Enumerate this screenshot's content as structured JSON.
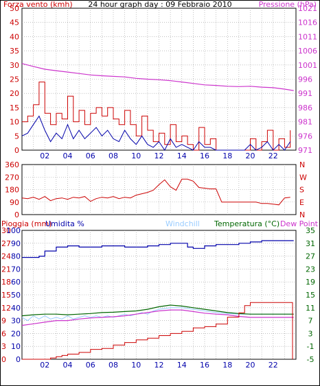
{
  "header": {
    "left_label": "Forza vento (kmh)",
    "title": "24 hour graph day : 09 Febbraio 2010",
    "right_label": "Pressione (hPa)"
  },
  "colors": {
    "wind": "#cc0000",
    "gust": "#0000aa",
    "pressure": "#cc33cc",
    "humidity": "#0000aa",
    "temperature": "#006600",
    "dewpoint": "#cc33cc",
    "windchill": "#99ccff",
    "rain": "#cc0000",
    "direction": "#cc0000",
    "frame": "#000000"
  },
  "chart_data": [
    {
      "type": "line",
      "panel": "wind-pressure",
      "x_tick_labels": [
        "02",
        "04",
        "06",
        "08",
        "10",
        "12",
        "14",
        "16",
        "18",
        "20",
        "22"
      ],
      "xlim": [
        0,
        24
      ],
      "y_left_ticks": [
        "0",
        "5",
        "10",
        "15",
        "20",
        "25",
        "30",
        "35",
        "40",
        "45",
        "50"
      ],
      "ylim_left": [
        0,
        50
      ],
      "y_right_ticks": [
        "971",
        "976",
        "981",
        "986",
        "991",
        "996",
        "1001",
        "1006",
        "1011",
        "1016",
        "1021"
      ],
      "ylim_right": [
        971,
        1021
      ],
      "series": [
        {
          "axis": "left",
          "x": [
            0,
            0.5,
            1,
            1.5,
            2,
            2.5,
            3,
            3.5,
            4,
            4.5,
            5,
            5.5,
            6,
            6.5,
            7,
            7.5,
            8,
            8.5,
            9,
            9.5,
            10,
            10.5,
            11,
            11.5,
            12,
            12.5,
            13,
            13.5,
            14,
            14.5,
            15,
            15.5,
            16,
            16.5,
            17,
            17.5,
            18,
            18.5,
            19,
            19.5,
            20,
            20.5,
            21,
            21.5,
            22,
            22.5,
            23,
            23.5
          ],
          "values": [
            10,
            12,
            16,
            24,
            13,
            9,
            13,
            11,
            19,
            10,
            14,
            9,
            13,
            15,
            12,
            15,
            11,
            9,
            14,
            9,
            5,
            12,
            7,
            3,
            6,
            2,
            9,
            3,
            5,
            2,
            0,
            8,
            2,
            4,
            0,
            0,
            0,
            0,
            0,
            0,
            4,
            0,
            3,
            7,
            0,
            4,
            1,
            7
          ]
        },
        {
          "axis": "left",
          "x": [
            0,
            0.5,
            1,
            1.5,
            2,
            2.5,
            3,
            3.5,
            4,
            4.5,
            5,
            5.5,
            6,
            6.5,
            7,
            7.5,
            8,
            8.5,
            9,
            9.5,
            10,
            10.5,
            11,
            11.5,
            12,
            12.5,
            13,
            13.5,
            14,
            14.5,
            15,
            15.5,
            16,
            16.5,
            17,
            17.5,
            18,
            18.5,
            19,
            19.5,
            20,
            20.5,
            21,
            21.5,
            22,
            22.5,
            23,
            23.5
          ],
          "values": [
            5,
            6,
            9,
            12,
            7,
            3,
            6,
            4,
            9,
            4,
            7,
            4,
            6,
            8,
            5,
            7,
            4,
            3,
            7,
            4,
            2,
            5,
            2,
            1,
            3,
            0,
            4,
            1,
            2,
            1,
            0,
            3,
            1,
            1,
            0,
            0,
            0,
            0,
            0,
            0,
            2,
            0,
            1,
            3,
            0,
            2,
            0,
            3
          ]
        },
        {
          "axis": "right",
          "x": [
            0,
            1,
            2,
            3,
            4,
            5,
            6,
            7,
            8,
            9,
            10,
            11,
            12,
            13,
            14,
            15,
            16,
            17,
            18,
            19,
            20,
            21,
            22,
            23,
            23.8
          ],
          "values": [
            1001.5,
            1000.5,
            999.5,
            999,
            998.5,
            998,
            997.5,
            997.2,
            997,
            996.8,
            996.3,
            996,
            995.8,
            995.5,
            995,
            994.5,
            994,
            993.8,
            993.5,
            993.4,
            993.5,
            993.2,
            993,
            992.5,
            992
          ]
        }
      ]
    },
    {
      "type": "line",
      "panel": "wind-direction",
      "x_tick_labels": [],
      "xlim": [
        0,
        24
      ],
      "y_left_ticks": [
        "0",
        "90",
        "180",
        "270",
        "360"
      ],
      "ylim_left": [
        0,
        360
      ],
      "y_right_ticks": [
        "N",
        "E",
        "S",
        "W",
        "N"
      ],
      "series": [
        {
          "axis": "left",
          "x": [
            0,
            0.5,
            1,
            1.5,
            2,
            2.5,
            3,
            3.5,
            4,
            4.5,
            5,
            5.5,
            6,
            6.5,
            7,
            7.5,
            8,
            8.5,
            9,
            9.5,
            10,
            10.5,
            11,
            11.5,
            12,
            12.5,
            13,
            13.5,
            14,
            14.5,
            15,
            15.5,
            16,
            16.5,
            17,
            17.5,
            18,
            18.5,
            19,
            19.5,
            20,
            20.5,
            21,
            21.5,
            22,
            22.5,
            23,
            23.5
          ],
          "values": [
            120,
            115,
            125,
            110,
            130,
            100,
            115,
            120,
            110,
            125,
            120,
            130,
            95,
            115,
            125,
            120,
            130,
            115,
            125,
            120,
            140,
            150,
            160,
            175,
            215,
            250,
            200,
            175,
            255,
            255,
            240,
            195,
            190,
            185,
            185,
            90,
            90,
            90,
            90,
            90,
            90,
            90,
            80,
            80,
            75,
            70,
            120,
            125
          ]
        }
      ]
    },
    {
      "type": "line",
      "panel": "rain-humidity-temperature",
      "labels": {
        "rain": "Pioggia (mm)",
        "humidity": "Umidita %",
        "windchill": "Windchill",
        "temperature": "Temperatura (°C)",
        "dewpoint": "Dew Point"
      },
      "x_tick_labels": [
        "02",
        "04",
        "06",
        "08",
        "10",
        "12",
        "14",
        "16",
        "18",
        "20",
        "22"
      ],
      "xlim": [
        0,
        24
      ],
      "y_rain_ticks": [
        "0",
        "3",
        "6",
        "9",
        "12",
        "15",
        "18",
        "21",
        "24",
        "27",
        "30"
      ],
      "ylim_rain": [
        0,
        30
      ],
      "y_humidity_ticks": [
        "0",
        "10",
        "20",
        "30",
        "40",
        "50",
        "60",
        "70",
        "80",
        "90",
        "100"
      ],
      "ylim_humidity": [
        0,
        100
      ],
      "y_temp_ticks": [
        "-5",
        "-1",
        "3",
        "7",
        "11",
        "15",
        "19",
        "23",
        "27",
        "31",
        "35"
      ],
      "ylim_temp": [
        -5,
        35
      ],
      "series": [
        {
          "name": "Umidita %",
          "axis": "humidity",
          "x": [
            0,
            1,
            1.5,
            2,
            3,
            4,
            5,
            6,
            7,
            8,
            9,
            10,
            11,
            12,
            13,
            14,
            14.5,
            15,
            16,
            17,
            18,
            19,
            20,
            21,
            22,
            23,
            23.8
          ],
          "values": [
            79,
            79,
            80,
            84,
            87,
            88,
            87,
            87,
            88,
            88,
            87,
            87,
            88,
            89,
            90,
            90,
            87,
            86,
            88,
            89,
            89,
            90,
            91,
            92,
            92,
            92,
            92
          ]
        },
        {
          "name": "Temperatura (°C)",
          "axis": "temp",
          "x": [
            0,
            1,
            2,
            3,
            4,
            5,
            6,
            7,
            8,
            9,
            10,
            11,
            12,
            13,
            14,
            15,
            16,
            17,
            18,
            19,
            20,
            21,
            22,
            23,
            23.8
          ],
          "values": [
            8.5,
            8.8,
            9,
            9,
            8.8,
            9,
            9.2,
            9.5,
            9.6,
            9.8,
            10,
            10.5,
            11.3,
            11.8,
            11.5,
            11,
            10.5,
            10,
            9.5,
            9.2,
            9,
            9,
            9,
            9,
            9
          ]
        },
        {
          "name": "Dew Point",
          "axis": "temp",
          "x": [
            0,
            1,
            2,
            3,
            4,
            5,
            6,
            7,
            8,
            9,
            10,
            11,
            12,
            13,
            14,
            15,
            16,
            17,
            18,
            19,
            20,
            21,
            22,
            23,
            23.8
          ],
          "values": [
            5.5,
            6,
            6.5,
            7,
            7,
            7.5,
            7.8,
            8,
            8.2,
            8.5,
            9,
            9.5,
            10,
            10.3,
            10.3,
            9.8,
            9.3,
            9,
            8.8,
            8.3,
            8,
            8,
            8,
            8,
            8
          ]
        },
        {
          "name": "Windchill",
          "axis": "temp",
          "x": [
            0,
            0.5,
            1,
            1.5,
            2,
            2.5,
            3,
            3.5,
            4,
            4.5,
            5,
            5.5,
            6,
            6.5,
            7,
            7.5,
            8,
            8.5,
            9,
            9.5,
            10,
            10.5,
            11,
            11.5,
            12,
            13,
            14,
            15,
            16,
            17,
            18,
            19,
            20,
            21,
            22,
            23,
            23.8
          ],
          "values": [
            8,
            7,
            8.5,
            7.5,
            8.5,
            7.5,
            8,
            7.5,
            8.5,
            7.5,
            8,
            8.5,
            8,
            8.5,
            8,
            8.5,
            8,
            8.5,
            9,
            8.5,
            9,
            9.5,
            9,
            10,
            10.5,
            11,
            11,
            10.5,
            10,
            9.5,
            9.2,
            9,
            9,
            9,
            9,
            9,
            9
          ]
        },
        {
          "name": "Pioggia (mm)",
          "axis": "rain",
          "x": [
            0,
            2,
            2.5,
            3,
            3.5,
            4,
            5,
            6,
            7,
            8,
            9,
            10,
            11,
            12,
            13,
            14,
            15,
            16,
            17,
            18,
            19,
            19.5,
            20,
            21,
            22,
            23,
            23.7
          ],
          "values": [
            0,
            0,
            0.3,
            0.6,
            0.9,
            1.2,
            1.6,
            2.3,
            2.5,
            3.3,
            3.9,
            4.5,
            4.9,
            5.5,
            6,
            6.5,
            7.3,
            7.6,
            8.2,
            9.8,
            10.8,
            12.5,
            13.2,
            13.2,
            13.2,
            13.2,
            13.2
          ]
        }
      ]
    }
  ]
}
